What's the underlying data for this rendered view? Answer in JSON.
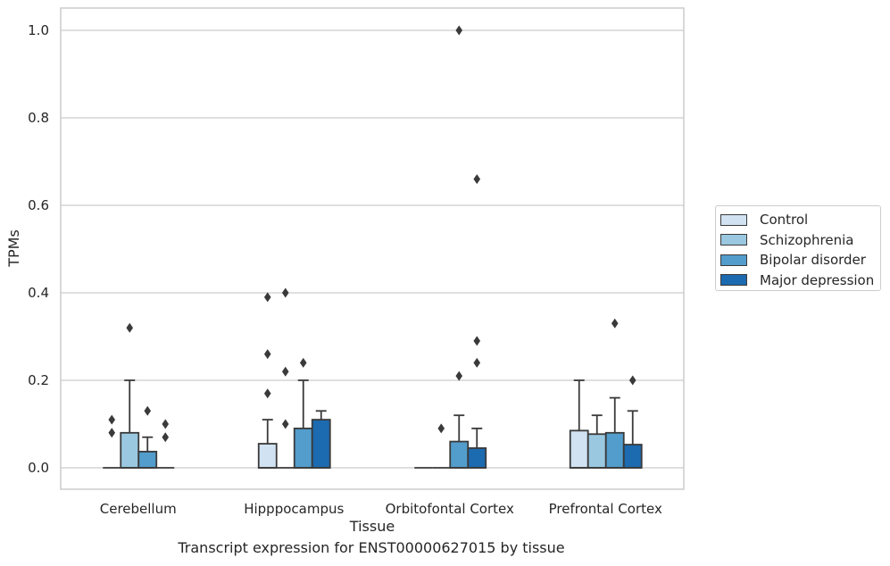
{
  "caption": "Transcript expression for ENST00000627015 by tissue",
  "chart_data": {
    "type": "box",
    "xlabel": "Tissue",
    "ylabel": "TPMs",
    "ylim": [
      -0.05,
      1.05
    ],
    "yticks": [
      0.0,
      0.2,
      0.4,
      0.6,
      0.8,
      1.0
    ],
    "ytick_labels": [
      "0.0",
      "0.2",
      "0.4",
      "0.6",
      "0.8",
      "1.0"
    ],
    "grid": "horizontal",
    "legend_position": "right",
    "categories": [
      "Cerebellum",
      "Hipppocampus",
      "Orbitofontal Cortex",
      "Prefrontal Cortex"
    ],
    "series": [
      {
        "name": "Control",
        "color": "#d1e2f2",
        "boxes": [
          {
            "q1": 0,
            "median": 0,
            "q3": 0,
            "whisker_low": 0,
            "whisker_high": 0,
            "outliers": [
              0.08,
              0.11
            ]
          },
          {
            "q1": 0,
            "median": 0,
            "q3": 0.055,
            "whisker_low": 0,
            "whisker_high": 0.11,
            "outliers": [
              0.17,
              0.26,
              0.39
            ]
          },
          {
            "q1": 0,
            "median": 0,
            "q3": 0,
            "whisker_low": 0,
            "whisker_high": 0,
            "outliers": []
          },
          {
            "q1": 0,
            "median": 0,
            "q3": 0.085,
            "whisker_low": 0,
            "whisker_high": 0.2,
            "outliers": []
          }
        ]
      },
      {
        "name": "Schizophrenia",
        "color": "#9ac8e0",
        "boxes": [
          {
            "q1": 0,
            "median": 0,
            "q3": 0.08,
            "whisker_low": 0,
            "whisker_high": 0.2,
            "outliers": [
              0.32
            ]
          },
          {
            "q1": 0,
            "median": 0,
            "q3": 0,
            "whisker_low": 0,
            "whisker_high": 0,
            "outliers": [
              0.1,
              0.22,
              0.4
            ]
          },
          {
            "q1": 0,
            "median": 0,
            "q3": 0,
            "whisker_low": 0,
            "whisker_high": 0,
            "outliers": [
              0.09
            ]
          },
          {
            "q1": 0,
            "median": 0,
            "q3": 0.077,
            "whisker_low": 0,
            "whisker_high": 0.12,
            "outliers": []
          }
        ]
      },
      {
        "name": "Bipolar disorder",
        "color": "#529dcc",
        "boxes": [
          {
            "q1": 0,
            "median": 0,
            "q3": 0.037,
            "whisker_low": 0,
            "whisker_high": 0.07,
            "outliers": [
              0.13
            ]
          },
          {
            "q1": 0,
            "median": 0,
            "q3": 0.09,
            "whisker_low": 0,
            "whisker_high": 0.2,
            "outliers": [
              0.24
            ]
          },
          {
            "q1": 0,
            "median": 0,
            "q3": 0.06,
            "whisker_low": 0,
            "whisker_high": 0.12,
            "outliers": [
              0.21,
              1.0
            ]
          },
          {
            "q1": 0,
            "median": 0,
            "q3": 0.08,
            "whisker_low": 0,
            "whisker_high": 0.16,
            "outliers": [
              0.33
            ]
          }
        ]
      },
      {
        "name": "Major depression",
        "color": "#1c6aaf",
        "boxes": [
          {
            "q1": 0,
            "median": 0,
            "q3": 0,
            "whisker_low": 0,
            "whisker_high": 0,
            "outliers": [
              0.07,
              0.1
            ]
          },
          {
            "q1": 0,
            "median": 0,
            "q3": 0.11,
            "whisker_low": 0,
            "whisker_high": 0.13,
            "outliers": []
          },
          {
            "q1": 0,
            "median": 0,
            "q3": 0.045,
            "whisker_low": 0,
            "whisker_high": 0.09,
            "outliers": [
              0.24,
              0.29,
              0.66
            ]
          },
          {
            "q1": 0,
            "median": 0,
            "q3": 0.053,
            "whisker_low": 0,
            "whisker_high": 0.13,
            "outliers": [
              0.2
            ]
          }
        ]
      }
    ]
  }
}
